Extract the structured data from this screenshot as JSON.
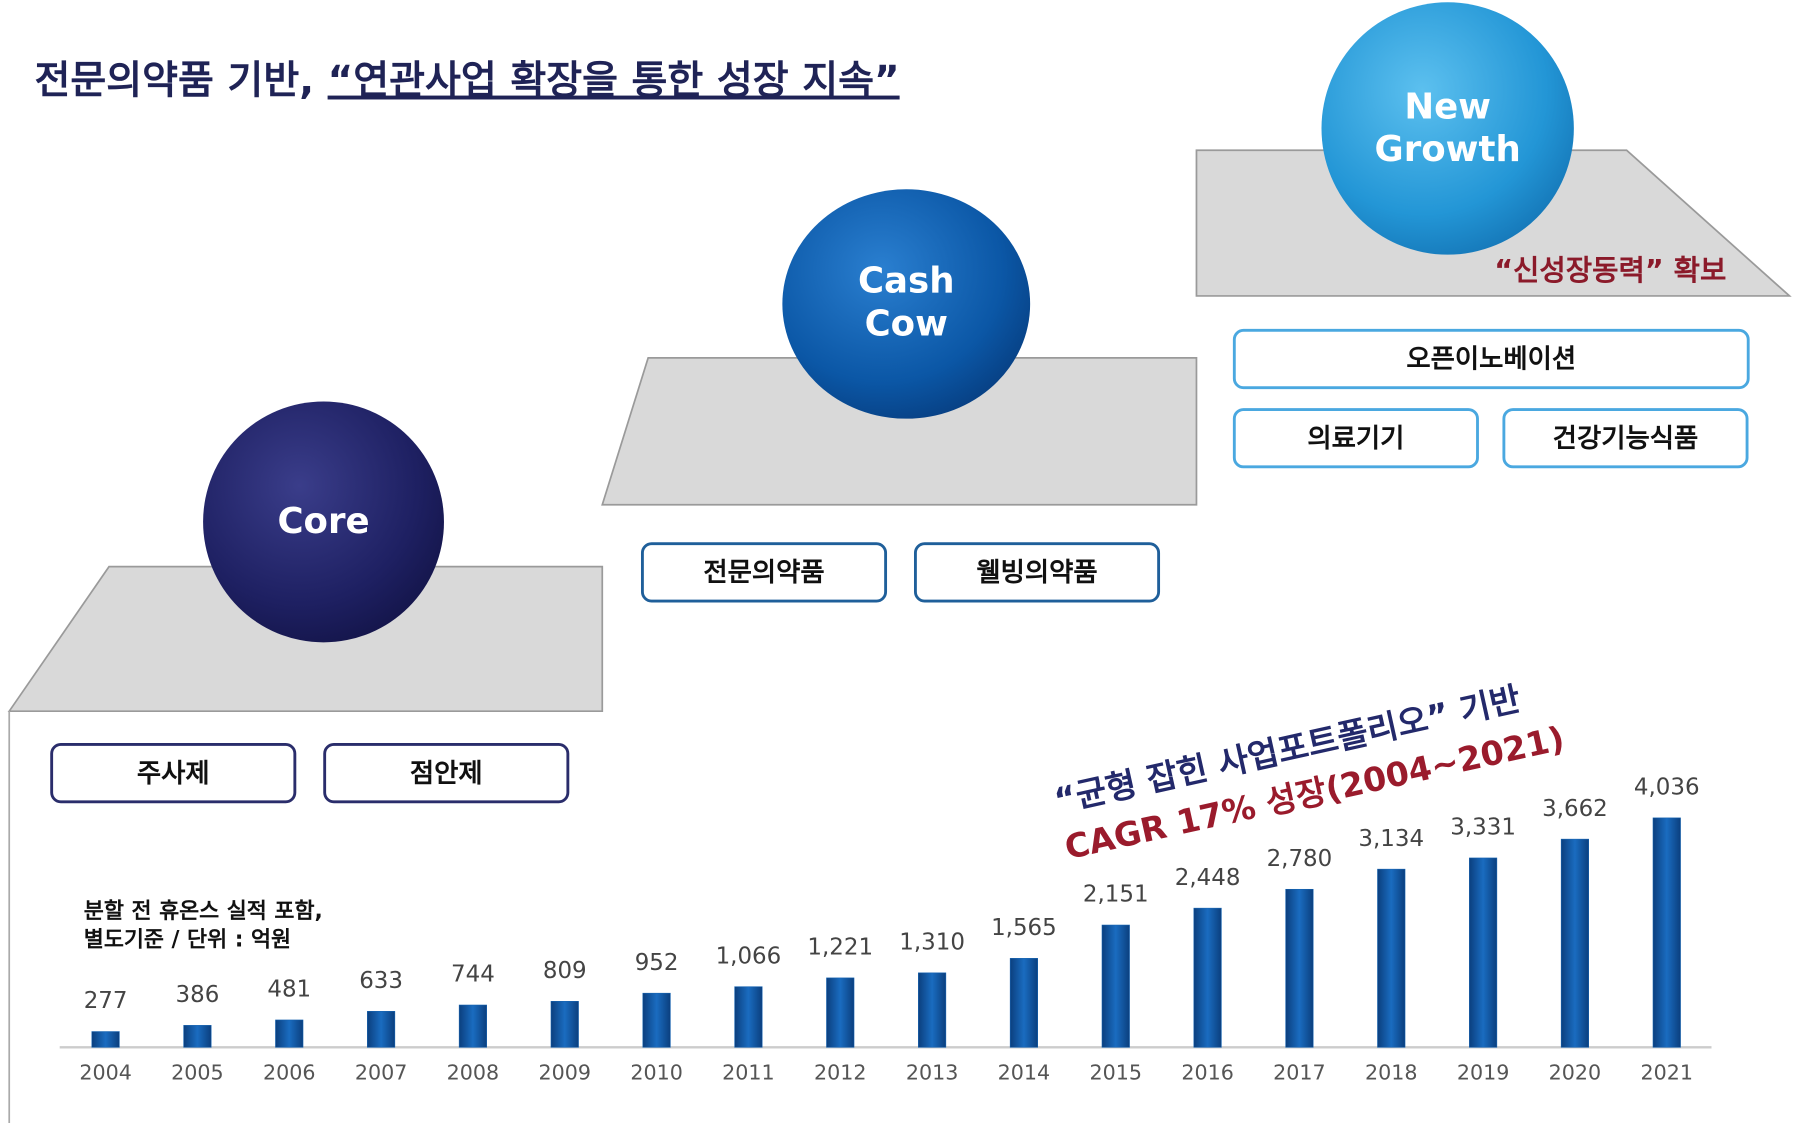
{
  "title_plain": "전문의약품 기반, ",
  "title_emphasis": "“연관사업 확장을 통한 성장 지속”",
  "stages": [
    {
      "label": "Core",
      "items": [
        "주사제",
        "점안제"
      ]
    },
    {
      "label": "Cash Cow",
      "items": [
        "전문의약품",
        "웰빙의약품"
      ]
    },
    {
      "label": "New Growth",
      "items": [
        "오픈이노베이션",
        "의료기기",
        "건강기능식품"
      ],
      "note": "“신성장동력” 확보"
    }
  ],
  "chart_data": {
    "type": "bar",
    "annotation_1": "“균형 잡힌 사업포트폴리오” 기반",
    "annotation_2": "CAGR 17% 성장(2004~2021)",
    "note_1": "분할 전 휴온스 실적 포함,",
    "note_2": "별도기준 / 단위 : 억원",
    "color": "#1462b0",
    "categories": [
      "2004",
      "2005",
      "2006",
      "2007",
      "2008",
      "2009",
      "2010",
      "2011",
      "2012",
      "2013",
      "2014",
      "2015",
      "2016",
      "2017",
      "2018",
      "2019",
      "2020",
      "2021"
    ],
    "values": [
      277,
      386,
      481,
      633,
      744,
      809,
      952,
      1066,
      1221,
      1310,
      1565,
      2151,
      2448,
      2780,
      3134,
      3331,
      3662,
      4036
    ],
    "value_labels": [
      "277",
      "386",
      "481",
      "633",
      "744",
      "809",
      "952",
      "1,066",
      "1,221",
      "1,310",
      "1,565",
      "2,151",
      "2,448",
      "2,780",
      "3,134",
      "3,331",
      "3,662",
      "4,036"
    ]
  }
}
